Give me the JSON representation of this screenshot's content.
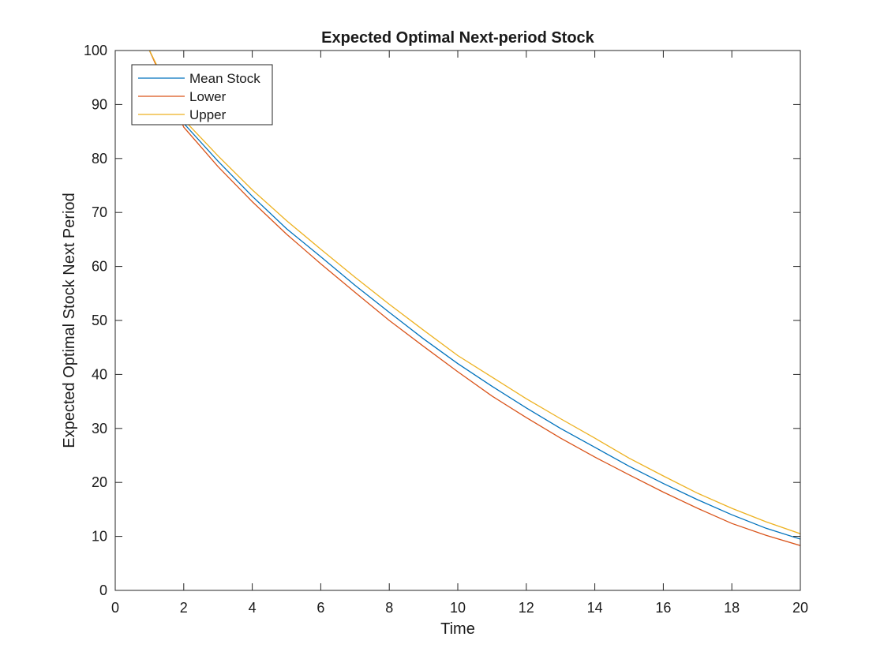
{
  "chart_data": {
    "type": "line",
    "title": "Expected Optimal Next-period Stock",
    "xlabel": "Time",
    "ylabel": "Expected Optimal Stock Next Period",
    "xlim": [
      0,
      20
    ],
    "ylim": [
      0,
      100
    ],
    "xticks": [
      0,
      2,
      4,
      6,
      8,
      10,
      12,
      14,
      16,
      18,
      20
    ],
    "yticks": [
      0,
      10,
      20,
      30,
      40,
      50,
      60,
      70,
      80,
      90,
      100
    ],
    "grid": false,
    "legend_position": "top-left",
    "x": [
      1,
      2,
      3,
      4,
      5,
      6,
      7,
      8,
      9,
      10,
      11,
      12,
      13,
      14,
      15,
      16,
      17,
      18,
      19,
      20
    ],
    "series": [
      {
        "name": "Mean Stock",
        "color": "#0072BD",
        "values": [
          100,
          86.5,
          79.5,
          73.0,
          67.0,
          61.8,
          56.5,
          51.5,
          46.6,
          42.0,
          37.8,
          33.8,
          30.0,
          26.5,
          23.0,
          19.8,
          16.8,
          14.0,
          11.5,
          9.5
        ]
      },
      {
        "name": "Lower",
        "color": "#D95319",
        "values": [
          100,
          85.8,
          78.5,
          72.0,
          66.0,
          60.5,
          55.2,
          50.0,
          45.2,
          40.5,
          36.0,
          32.0,
          28.2,
          24.7,
          21.4,
          18.2,
          15.2,
          12.4,
          10.2,
          8.3
        ]
      },
      {
        "name": "Upper",
        "color": "#EDB120",
        "values": [
          100,
          87.2,
          80.5,
          74.2,
          68.5,
          63.2,
          58.0,
          53.0,
          48.2,
          43.5,
          39.5,
          35.5,
          31.8,
          28.2,
          24.5,
          21.2,
          18.0,
          15.2,
          12.7,
          10.5
        ]
      }
    ]
  }
}
